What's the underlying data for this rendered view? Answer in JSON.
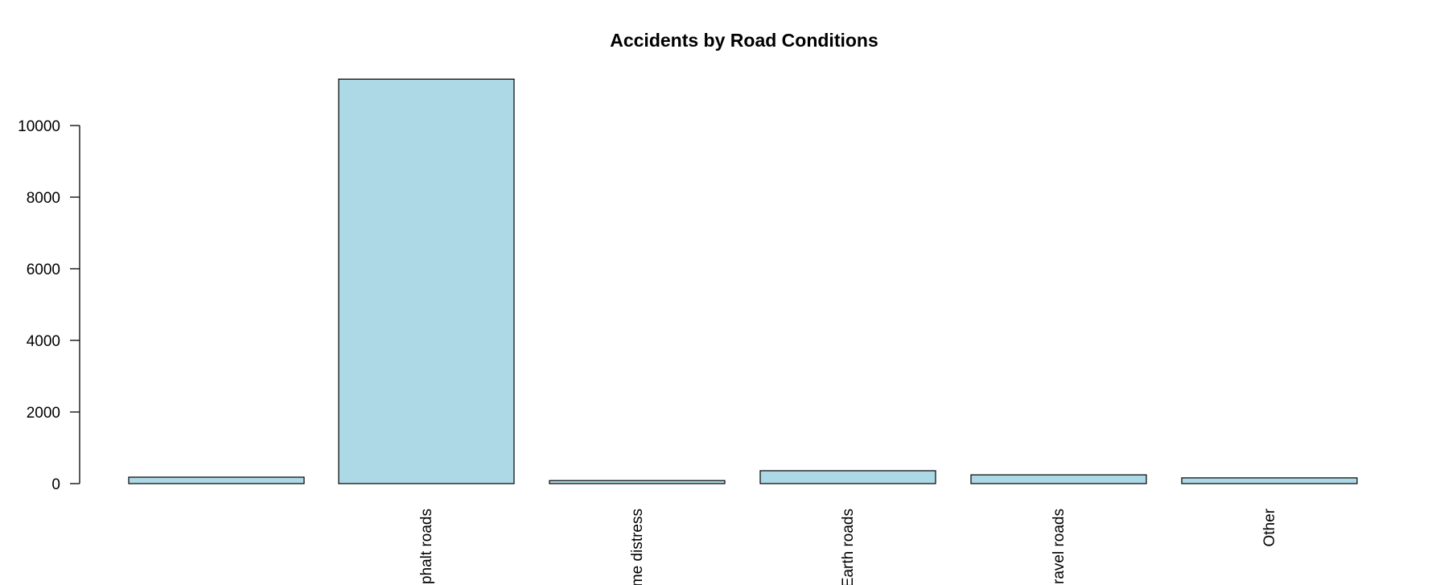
{
  "chart_data": {
    "type": "bar",
    "title": "Accidents by Road Conditions",
    "xlabel": "",
    "ylabel": "",
    "categories": [
      "",
      "Asphalt roads",
      "Asphalt roads with some distress",
      "Earth roads",
      "Gravel roads",
      "Other"
    ],
    "visible_tick_labels": [
      "",
      "phalt roads",
      "me distress",
      "Earth roads",
      "ravel roads",
      "Other"
    ],
    "values": [
      180,
      11296,
      85,
      360,
      245,
      160
    ],
    "yticks": [
      0,
      2000,
      4000,
      6000,
      8000,
      10000
    ],
    "ylim": [
      0,
      11296
    ],
    "grid": false,
    "legend": "none",
    "colors": {
      "bar_fill": "#add8e6",
      "bar_stroke": "#000000",
      "axis": "#000000",
      "background": "#ffffff"
    }
  }
}
